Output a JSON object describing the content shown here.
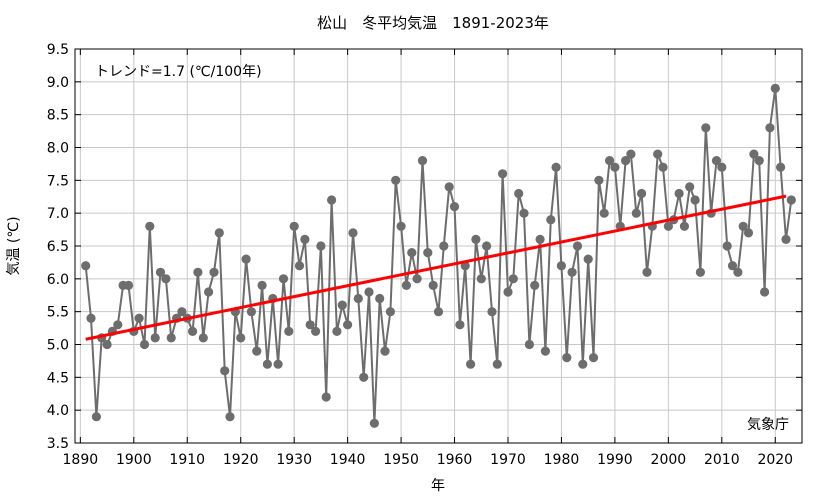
{
  "chart_data": {
    "type": "line",
    "title": "松山　冬平均気温　1891-2023年",
    "xlabel": "年",
    "ylabel": "気温 (℃)",
    "xlim": [
      1889,
      2025
    ],
    "ylim": [
      3.5,
      9.5
    ],
    "x_ticks": [
      1890,
      1900,
      1910,
      1920,
      1930,
      1940,
      1950,
      1960,
      1970,
      1980,
      1990,
      2000,
      2010,
      2020
    ],
    "y_ticks": [
      "3.5",
      "4.0",
      "4.5",
      "5.0",
      "5.5",
      "6.0",
      "6.5",
      "7.0",
      "7.5",
      "8.0",
      "8.5",
      "9.0",
      "9.5"
    ],
    "grid": true,
    "trend_label": "トレンド=1.7 (℃/100年)",
    "source": "気象庁",
    "colors": {
      "series": "#6d6d6d",
      "trend": "#ff0000",
      "grid": "#c8c8c8"
    },
    "trend": {
      "x": [
        1891,
        2022
      ],
      "y": [
        5.08,
        7.26
      ]
    },
    "series": [
      {
        "x": [
          1891,
          1892,
          1893,
          1894,
          1895,
          1896,
          1897,
          1898,
          1899,
          1900,
          1901,
          1902,
          1903,
          1904,
          1905,
          1906,
          1907,
          1908,
          1909,
          1910,
          1911,
          1912,
          1913,
          1914,
          1915,
          1916,
          1917,
          1918,
          1919,
          1920,
          1921,
          1922,
          1923,
          1924,
          1925,
          1926,
          1927,
          1928,
          1929,
          1930,
          1931,
          1932,
          1933,
          1934,
          1935,
          1936,
          1937,
          1938,
          1939,
          1940,
          1941,
          1942,
          1943,
          1944,
          1945,
          1946,
          1947,
          1948,
          1949,
          1950,
          1951,
          1952,
          1953,
          1954,
          1955,
          1956,
          1957,
          1958,
          1959,
          1960,
          1961,
          1962,
          1963,
          1964,
          1965,
          1966,
          1967,
          1968,
          1969,
          1970,
          1971,
          1972,
          1973,
          1974,
          1975,
          1976,
          1977,
          1978,
          1979,
          1980,
          1981,
          1982,
          1983,
          1984,
          1985,
          1986,
          1987,
          1988,
          1989,
          1990,
          1991,
          1992,
          1993,
          1994,
          1995,
          1996,
          1997,
          1998,
          1999,
          2000,
          2001,
          2002,
          2003,
          2004,
          2005,
          2006,
          2007,
          2008,
          2009,
          2010,
          2011,
          2012,
          2013,
          2014,
          2015,
          2016,
          2017,
          2018,
          2019,
          2020,
          2021,
          2022,
          2023
        ],
        "values": [
          6.2,
          5.4,
          3.9,
          5.1,
          5.0,
          5.2,
          5.3,
          5.9,
          5.9,
          5.2,
          5.4,
          5.0,
          6.8,
          5.1,
          6.1,
          6.0,
          5.1,
          5.4,
          5.5,
          5.4,
          5.2,
          6.1,
          5.1,
          5.8,
          6.1,
          6.7,
          4.6,
          3.9,
          5.5,
          5.1,
          6.3,
          5.5,
          4.9,
          5.9,
          4.7,
          5.7,
          4.7,
          6.0,
          5.2,
          6.8,
          6.2,
          6.6,
          5.3,
          5.2,
          6.5,
          4.2,
          7.2,
          5.2,
          5.6,
          5.3,
          6.7,
          5.7,
          4.5,
          5.8,
          3.8,
          5.7,
          4.9,
          5.5,
          7.5,
          6.8,
          5.9,
          6.4,
          6.0,
          7.8,
          6.4,
          5.9,
          5.5,
          6.5,
          7.4,
          7.1,
          5.3,
          6.2,
          4.7,
          6.6,
          6.0,
          6.5,
          5.5,
          4.7,
          7.6,
          5.8,
          6.0,
          7.3,
          7.0,
          5.0,
          5.9,
          6.6,
          4.9,
          6.9,
          7.7,
          6.2,
          4.8,
          6.1,
          6.5,
          4.7,
          6.3,
          4.8,
          7.5,
          7.0,
          7.8,
          7.7,
          6.8,
          7.8,
          7.9,
          7.0,
          7.3,
          6.1,
          6.8,
          7.9,
          7.7,
          6.8,
          6.9,
          7.3,
          6.8,
          7.4,
          7.2,
          6.1,
          8.3,
          7.0,
          7.8,
          7.7,
          6.5,
          6.2,
          6.1,
          6.8,
          6.7,
          7.9,
          7.8,
          5.8,
          8.3,
          8.9,
          7.7,
          6.6,
          7.2
        ]
      }
    ]
  }
}
